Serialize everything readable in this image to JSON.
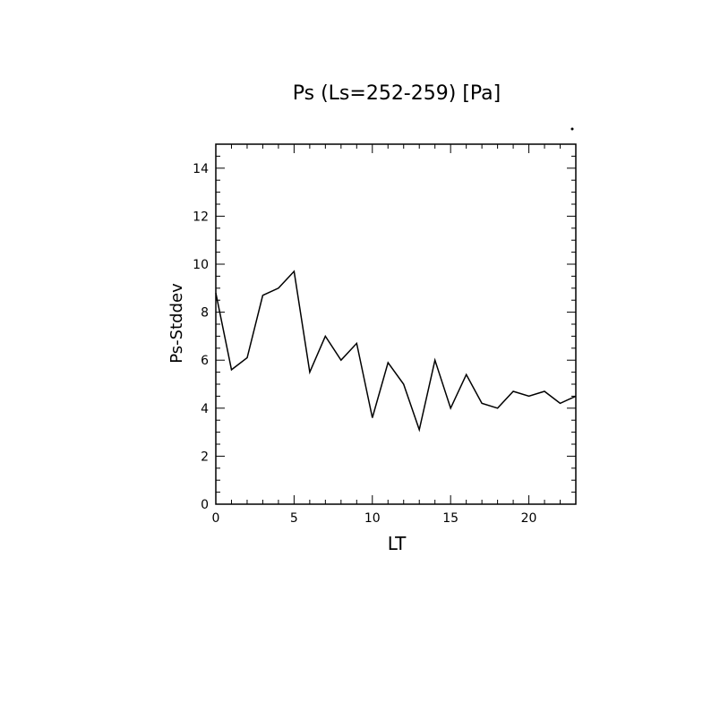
{
  "chart_data": {
    "type": "line",
    "title": "Ps (Ls=252-259) [Pa]",
    "xlabel": "LT",
    "ylabel": "Ps-Stddev",
    "xlim": [
      0,
      23
    ],
    "ylim": [
      0,
      15
    ],
    "xticks": [
      0,
      5,
      10,
      15,
      20
    ],
    "yticks": [
      0,
      2,
      4,
      6,
      8,
      10,
      12,
      14
    ],
    "grid": false,
    "x": [
      0,
      1,
      2,
      3,
      4,
      5,
      6,
      7,
      8,
      9,
      10,
      11,
      12,
      13,
      14,
      15,
      16,
      17,
      18,
      19,
      20,
      21,
      22,
      23
    ],
    "series": [
      {
        "values": [
          8.8,
          5.6,
          6.1,
          8.7,
          9.0,
          9.7,
          5.5,
          7.0,
          6.0,
          6.7,
          3.6,
          5.9,
          5.0,
          3.1,
          6.0,
          4.0,
          5.4,
          4.2,
          4.0,
          4.7,
          4.5,
          4.7,
          4.2,
          4.5
        ]
      }
    ]
  }
}
